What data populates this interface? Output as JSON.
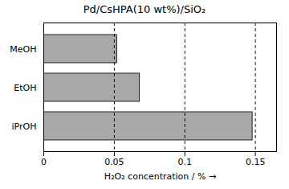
{
  "chart_data": {
    "type": "bar",
    "orientation": "horizontal",
    "title": "Pd/CsHPA(10 wt%)/SiO₂",
    "categories": [
      "iPrOH",
      "EtOH",
      "MeOH"
    ],
    "values": [
      0.148,
      0.068,
      0.052
    ],
    "color": "#a8a8a8",
    "xlabel": "H₂O₂ concentration / %",
    "xlim": [
      0,
      0.165
    ],
    "xticks": [
      0,
      0.05,
      0.1,
      0.15
    ],
    "grid": true
  }
}
